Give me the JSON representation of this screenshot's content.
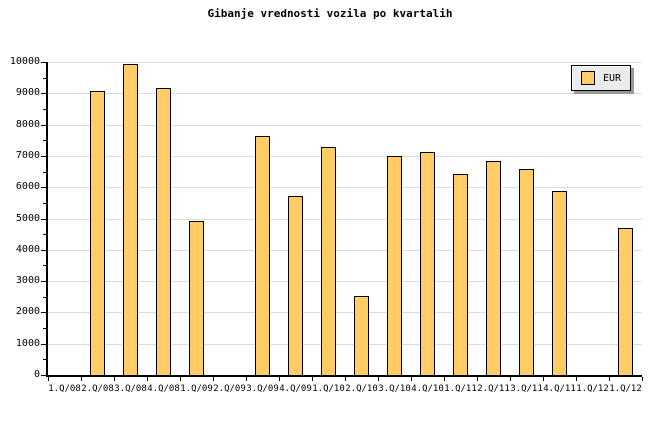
{
  "title": "Gibanje vrednosti vozila po kvartalih",
  "legend": {
    "label": "EUR"
  },
  "colors": {
    "background": "#FFFFFF",
    "bar_fill": "#FFCC66",
    "bar_border": "#000000",
    "gridline": "#DCDCDC",
    "axis": "#000000",
    "legend_bg": "#EBEBEB"
  },
  "chart_data": {
    "type": "bar",
    "title": "Gibanje vrednosti vozila po kvartalih",
    "categories": [
      "1.Q/08",
      "2.Q/08",
      "3.Q/08",
      "4.Q/08",
      "1.Q/09",
      "2.Q/09",
      "3.Q/09",
      "4.Q/09",
      "1.Q/10",
      "2.Q/10",
      "3.Q/10",
      "4.Q/10",
      "1.Q/11",
      "2.Q/11",
      "3.Q/11",
      "4.Q/11",
      "1.Q/12",
      "1.Q/12"
    ],
    "series": [
      {
        "name": "EUR",
        "values": [
          null,
          9050,
          9900,
          9150,
          4900,
          null,
          7600,
          5700,
          7250,
          2500,
          6950,
          7100,
          6400,
          6800,
          6550,
          5850,
          null,
          4650
        ]
      }
    ],
    "xlabel": "",
    "ylabel": "",
    "ylim": [
      0,
      10000
    ],
    "ytick_step": 1000,
    "ytick_minor_step": 500,
    "grid": "horizontal",
    "legend_position": "top-right"
  }
}
